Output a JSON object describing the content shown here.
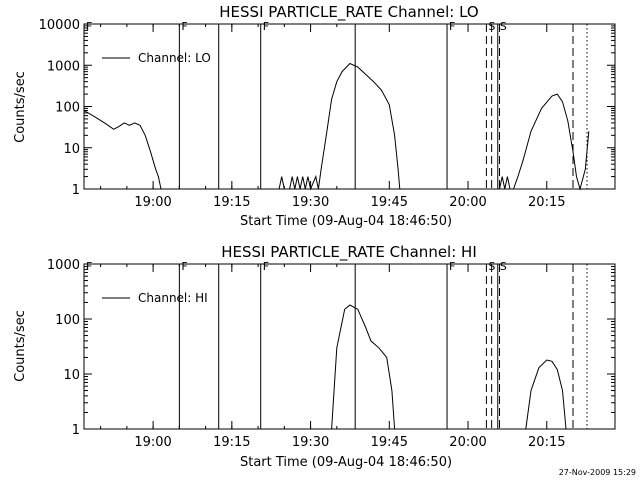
{
  "footer": {
    "timestamp": "27-Nov-2009 15:29"
  },
  "chart_data": [
    {
      "type": "line",
      "title": "HESSI PARTICLE_RATE Channel: LO",
      "xlabel": "Start Time (09-Aug-04 18:46:50)",
      "ylabel": "Counts/sec",
      "yscale": "log",
      "xlim": [
        "18:46:50",
        "20:28:00"
      ],
      "ylim": [
        1,
        10000
      ],
      "x_ticks": [
        "19:00",
        "19:15",
        "19:30",
        "19:45",
        "20:00",
        "20:15"
      ],
      "y_ticks": [
        "1",
        "10",
        "100",
        "1000",
        "10000"
      ],
      "legend": {
        "label": "Channel: LO",
        "position": "top-left"
      },
      "markers": [
        {
          "time": "18:46:50",
          "label": "F",
          "style": "solid"
        },
        {
          "time": "19:05:00",
          "label": "F",
          "style": "solid"
        },
        {
          "time": "19:12:30",
          "label": "",
          "style": "solid"
        },
        {
          "time": "19:20:30",
          "label": "F",
          "style": "solid"
        },
        {
          "time": "19:38:30",
          "label": "",
          "style": "solid"
        },
        {
          "time": "19:56:00",
          "label": "F",
          "style": "solid"
        },
        {
          "time": "20:03:30",
          "label": "S",
          "style": "dashed"
        },
        {
          "time": "20:04:30",
          "label": "",
          "style": "dashed"
        },
        {
          "time": "20:05:40",
          "label": "S",
          "style": "solid"
        },
        {
          "time": "20:06:00",
          "label": "",
          "style": "dashed"
        },
        {
          "time": "20:20:00",
          "label": "",
          "style": "dashed"
        },
        {
          "time": "20:22:40",
          "label": "",
          "style": "dotted"
        }
      ],
      "series": [
        {
          "segments": [
            [
              [
                "18:46:50",
                80
              ],
              [
                "18:49:00",
                55
              ],
              [
                "18:51:00",
                38
              ],
              [
                "18:52:30",
                28
              ],
              [
                "18:53:30",
                33
              ],
              [
                "18:54:30",
                40
              ],
              [
                "18:55:30",
                35
              ],
              [
                "18:56:30",
                40
              ],
              [
                "18:57:30",
                35
              ],
              [
                "18:58:30",
                20
              ],
              [
                "18:59:30",
                8
              ],
              [
                "19:00:30",
                3
              ],
              [
                "19:01:00",
                2
              ],
              [
                "19:01:30",
                1
              ]
            ],
            [
              [
                "19:24:00",
                1
              ],
              [
                "19:24:30",
                2
              ],
              [
                "19:25:00",
                1
              ],
              [
                "19:26:00",
                1
              ],
              [
                "19:26:30",
                2
              ],
              [
                "19:27:00",
                1
              ],
              [
                "19:27:30",
                2
              ],
              [
                "19:28:00",
                1
              ],
              [
                "19:28:30",
                2
              ],
              [
                "19:29:00",
                1
              ],
              [
                "19:29:30",
                2
              ],
              [
                "19:30:00",
                1
              ],
              [
                "19:31:00",
                2
              ],
              [
                "19:31:30",
                1
              ],
              [
                "19:32:00",
                3
              ],
              [
                "19:33:00",
                20
              ],
              [
                "19:34:00",
                150
              ],
              [
                "19:35:00",
                400
              ],
              [
                "19:36:00",
                700
              ],
              [
                "19:37:30",
                1100
              ],
              [
                "19:39:00",
                900
              ],
              [
                "19:40:30",
                600
              ],
              [
                "19:42:00",
                400
              ],
              [
                "19:43:30",
                250
              ],
              [
                "19:45:00",
                110
              ],
              [
                "19:46:00",
                20
              ],
              [
                "19:46:40",
                3
              ],
              [
                "19:47:00",
                1
              ]
            ],
            [
              [
                "20:06:00",
                1
              ],
              [
                "20:06:30",
                2
              ],
              [
                "20:07:00",
                1
              ],
              [
                "20:07:30",
                2
              ],
              [
                "20:08:00",
                1
              ],
              [
                "20:08:40",
                1
              ],
              [
                "20:09:30",
                2
              ],
              [
                "20:10:30",
                5
              ],
              [
                "20:12:00",
                25
              ],
              [
                "20:14:00",
                90
              ],
              [
                "20:16:00",
                180
              ],
              [
                "20:17:00",
                200
              ],
              [
                "20:18:00",
                130
              ],
              [
                "20:19:00",
                45
              ],
              [
                "20:20:00",
                8
              ],
              [
                "20:20:40",
                2
              ],
              [
                "20:21:20",
                1
              ],
              [
                "20:22:20",
                3
              ],
              [
                "20:23:00",
                25
              ]
            ]
          ]
        }
      ]
    },
    {
      "type": "line",
      "title": "HESSI PARTICLE_RATE Channel: HI",
      "xlabel": "Start Time (09-Aug-04 18:46:50)",
      "ylabel": "Counts/sec",
      "yscale": "log",
      "xlim": [
        "18:46:50",
        "20:28:00"
      ],
      "ylim": [
        1,
        1000
      ],
      "x_ticks": [
        "19:00",
        "19:15",
        "19:30",
        "19:45",
        "20:00",
        "20:15"
      ],
      "y_ticks": [
        "1",
        "10",
        "100",
        "1000"
      ],
      "legend": {
        "label": "Channel: HI",
        "position": "top-left"
      },
      "markers": [
        {
          "time": "18:46:50",
          "label": "F",
          "style": "solid"
        },
        {
          "time": "19:05:00",
          "label": "F",
          "style": "solid"
        },
        {
          "time": "19:12:30",
          "label": "",
          "style": "solid"
        },
        {
          "time": "19:20:30",
          "label": "F",
          "style": "solid"
        },
        {
          "time": "19:38:30",
          "label": "",
          "style": "solid"
        },
        {
          "time": "19:56:00",
          "label": "F",
          "style": "solid"
        },
        {
          "time": "20:03:30",
          "label": "S",
          "style": "dashed"
        },
        {
          "time": "20:04:30",
          "label": "",
          "style": "dashed"
        },
        {
          "time": "20:05:40",
          "label": "S",
          "style": "solid"
        },
        {
          "time": "20:06:00",
          "label": "",
          "style": "dashed"
        },
        {
          "time": "20:20:00",
          "label": "",
          "style": "dashed"
        },
        {
          "time": "20:22:40",
          "label": "",
          "style": "dotted"
        }
      ],
      "series": [
        {
          "segments": [
            [
              [
                "19:34:00",
                1
              ],
              [
                "19:35:00",
                30
              ],
              [
                "19:36:30",
                150
              ],
              [
                "19:37:30",
                180
              ],
              [
                "19:39:00",
                150
              ],
              [
                "19:40:30",
                70
              ],
              [
                "19:41:30",
                40
              ],
              [
                "19:43:00",
                30
              ],
              [
                "19:44:30",
                20
              ],
              [
                "19:45:30",
                5
              ],
              [
                "19:46:00",
                1
              ]
            ],
            [
              [
                "20:11:00",
                1
              ],
              [
                "20:12:00",
                5
              ],
              [
                "20:13:30",
                13
              ],
              [
                "20:15:00",
                18
              ],
              [
                "20:16:00",
                17
              ],
              [
                "20:17:00",
                12
              ],
              [
                "20:18:00",
                5
              ],
              [
                "20:18:40",
                1
              ]
            ]
          ]
        }
      ]
    }
  ]
}
